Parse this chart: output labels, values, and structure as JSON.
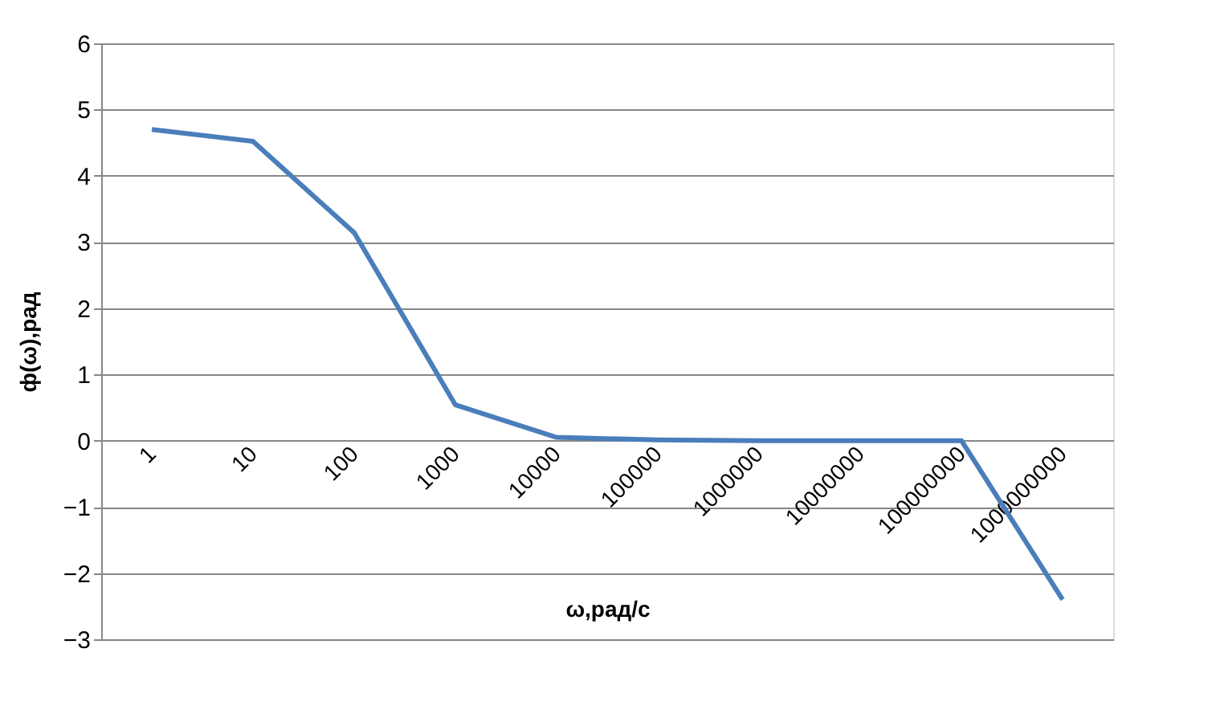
{
  "chart_data": {
    "type": "line",
    "xlabel": "ω,рад/с",
    "ylabel": "ф(ω),рад",
    "categories": [
      "1",
      "10",
      "100",
      "1000",
      "10000",
      "100000",
      "1000000",
      "10000000",
      "100000000",
      "1000000000"
    ],
    "series": [
      {
        "color": "#4a7ebb",
        "values": [
          4.7,
          4.52,
          3.14,
          0.54,
          0.05,
          0.01,
          0,
          0,
          0,
          -2.4
        ]
      }
    ],
    "ylim": [
      -3,
      6
    ],
    "yticks": [
      -3,
      -2,
      -1,
      0,
      1,
      2,
      3,
      4,
      5,
      6
    ],
    "grid": "y",
    "legend": false,
    "marker": "none",
    "line_style": "solid"
  }
}
